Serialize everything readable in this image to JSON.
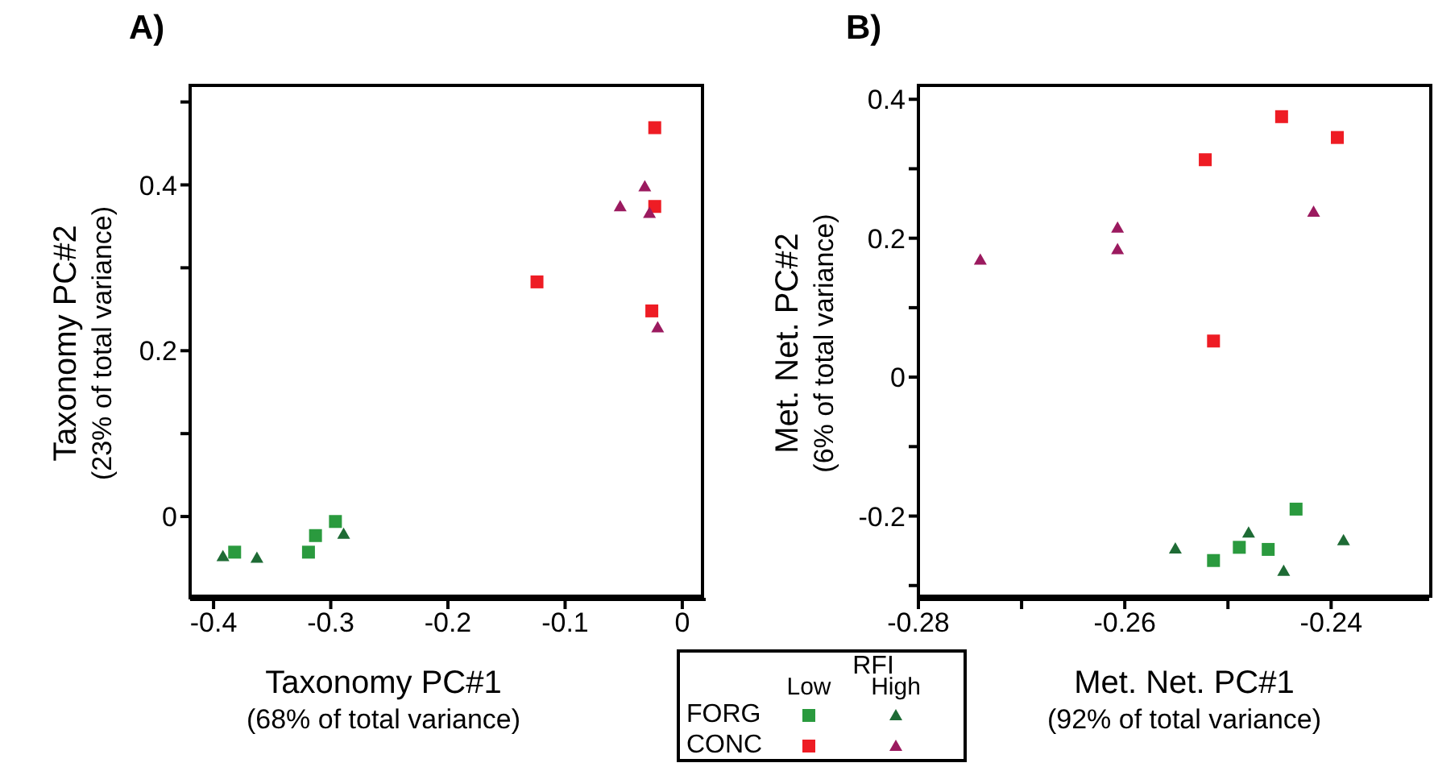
{
  "chart_data": [
    {
      "type": "scatter",
      "title": "A)",
      "xlabel": "Taxonomy PC#1\n(68% of total variance)",
      "ylabel": "Taxonomy PC#2\n(23% of total variance)",
      "xlim": [
        -0.42,
        0.02
      ],
      "ylim": [
        -0.1,
        0.52
      ],
      "xticks": [
        -0.4,
        -0.3,
        -0.2,
        -0.1,
        0
      ],
      "yticks": [
        0,
        {
          "value": 0.1,
          "label": null
        },
        0.2,
        {
          "value": 0.3,
          "label": null
        },
        0.4,
        {
          "value": 0.5,
          "label": null
        }
      ],
      "series": [
        {
          "color": "#2a9a3e",
          "marker": "square",
          "x": [
            -0.382,
            -0.319,
            -0.313,
            -0.296
          ],
          "values": [
            -0.043,
            -0.043,
            -0.023,
            -0.006
          ]
        },
        {
          "color": "#1e6b35",
          "marker": "triangle",
          "x": [
            -0.392,
            -0.363,
            -0.289
          ],
          "values": [
            -0.048,
            -0.05,
            -0.021
          ]
        },
        {
          "color": "#ee1c24",
          "marker": "square",
          "x": [
            -0.0235,
            -0.0235,
            -0.124,
            -0.026
          ],
          "values": [
            0.469,
            0.374,
            0.283,
            0.248
          ]
        },
        {
          "color": "#9b1a5f",
          "marker": "triangle",
          "x": [
            -0.032,
            -0.053,
            -0.028,
            -0.021
          ],
          "values": [
            0.398,
            0.374,
            0.366,
            0.228
          ]
        }
      ]
    },
    {
      "type": "scatter",
      "title": "B)",
      "xlabel": "Met. Net. PC#1\n(92% of total variance)",
      "ylabel": "Met. Net. PC#2\n(6% of total variance)",
      "xlim": [
        -0.28,
        -0.2305
      ],
      "ylim": [
        -0.32,
        0.42
      ],
      "xticks": [
        -0.28,
        {
          "value": -0.27,
          "label": null
        },
        -0.26,
        {
          "value": -0.25,
          "label": null
        },
        -0.24
      ],
      "yticks": [
        {
          "value": -0.3,
          "label": null
        },
        -0.2,
        {
          "value": -0.1,
          "label": null
        },
        0,
        {
          "value": 0.1,
          "label": null
        },
        0.2,
        {
          "value": 0.3,
          "label": null
        },
        0.4
      ],
      "legend": "bottom left",
      "legend_title": "RFI",
      "annotations": [
        "Low",
        "High"
      ],
      "series": [
        {
          "name": "FORG",
          "color": "#2a9a3e",
          "marker": "square",
          "x": [
            -0.2434,
            -0.2489,
            -0.2461,
            -0.2514
          ],
          "values": [
            -0.19,
            -0.245,
            -0.248,
            -0.264
          ]
        },
        {
          "color": "#1e6b35",
          "marker": "triangle",
          "x": [
            -0.2551,
            -0.248,
            -0.2446,
            -0.2388
          ],
          "values": [
            -0.247,
            -0.224,
            -0.279,
            -0.235
          ]
        },
        {
          "name": "CONC",
          "color": "#ee1c24",
          "marker": "square",
          "x": [
            -0.2448,
            -0.2394,
            -0.2522,
            -0.2514
          ],
          "values": [
            0.375,
            0.345,
            0.313,
            0.052
          ]
        },
        {
          "color": "#9b1a5f",
          "marker": "triangle",
          "x": [
            -0.274,
            -0.2607,
            -0.2607,
            -0.2417
          ],
          "values": [
            0.169,
            0.215,
            0.184,
            0.238
          ]
        }
      ]
    }
  ]
}
